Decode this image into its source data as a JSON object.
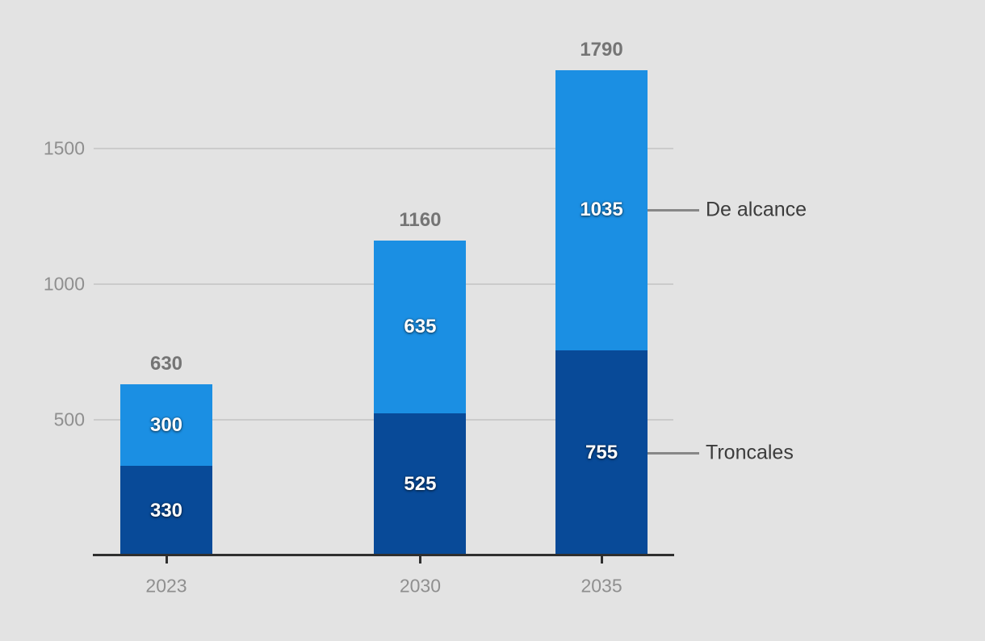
{
  "chart_data": {
    "type": "bar",
    "stacked": true,
    "title": "",
    "categories": [
      "2023",
      "2030",
      "2035"
    ],
    "series": [
      {
        "name": "Troncales",
        "color": "#084a98",
        "values": [
          330,
          525,
          755
        ]
      },
      {
        "name": "De alcance",
        "color": "#1b8fe3",
        "values": [
          300,
          635,
          1035
        ]
      }
    ],
    "totals": [
      630,
      1160,
      1790
    ],
    "y_axis": {
      "ticks": [
        500,
        1000,
        1500
      ],
      "range": [
        0,
        1790
      ],
      "grid": true
    },
    "x_axis": {
      "labels": [
        "2023",
        "2030",
        "2035"
      ],
      "linear_year_spacing": true
    },
    "annotations": [
      {
        "text": "De alcance",
        "series": "De alcance",
        "category": "2035"
      },
      {
        "text": "Troncales",
        "series": "Troncales",
        "category": "2035"
      }
    ],
    "legend_position": "right-annotations",
    "colors": {
      "background": "#e3e3e3",
      "gridline": "#cbcbcb",
      "axis_line": "#2f2f2f",
      "tick_label": "#8f8f8f",
      "total_label": "#757575",
      "value_label": "#ffffff",
      "annotation_text": "#3c3c3c",
      "annotation_line": "#878787"
    }
  }
}
